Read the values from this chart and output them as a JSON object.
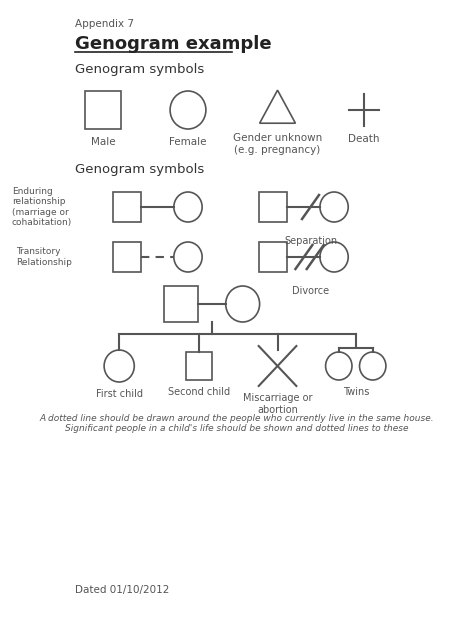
{
  "bg_color": "#ffffff",
  "text_color": "#555555",
  "line_color": "#555555",
  "title_appendix": "Appendix 7",
  "title_main": "Genogram example",
  "subtitle1": "Genogram symbols",
  "subtitle2": "Genogram symbols",
  "footer_note": "A dotted line should be drawn around the people who currently live in the same house.\nSignificant people in a child's life should be shown and dotted lines to these",
  "dated": "Dated 01/10/2012",
  "labels_row1": [
    "Male",
    "Female",
    "Gender unknown\n(e.g. pregnancy)",
    "Death"
  ],
  "labels_rel1": [
    "Enduring\nrelationship\n(marriage or\ncohabitation)",
    "Separation"
  ],
  "labels_rel2": [
    "Transitory\nRelationship",
    "Divorce"
  ],
  "labels_children": [
    "First child",
    "Second child",
    "Miscarriage or\nabortion",
    "Twins"
  ]
}
